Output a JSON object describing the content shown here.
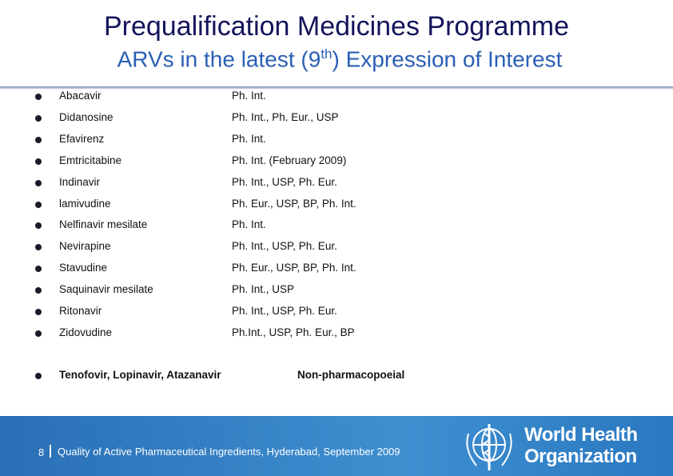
{
  "header": {
    "title": "Prequalification Medicines Programme",
    "subtitle": {
      "before": "ARVs in the latest (9",
      "sup": "th",
      "after": ") Expression of Interest"
    }
  },
  "table": {
    "rows": [
      [
        "Abacavir",
        "Ph. Int."
      ],
      [
        "Didanosine",
        "Ph. Int., Ph. Eur., USP"
      ],
      [
        "Efavirenz",
        "Ph. Int."
      ],
      [
        "Emtricitabine",
        "Ph. Int. (February 2009)"
      ],
      [
        "Indinavir",
        "Ph. Int., USP, Ph. Eur."
      ],
      [
        "lamivudine",
        "Ph. Eur., USP, BP, Ph. Int."
      ],
      [
        "Nelfinavir mesilate",
        "Ph. Int."
      ],
      [
        "Nevirapine",
        "Ph. Int., USP, Ph. Eur."
      ],
      [
        "Stavudine",
        "Ph. Eur., USP, BP, Ph. Int."
      ],
      [
        "Saquinavir mesilate",
        "Ph. Int., USP"
      ],
      [
        "Ritonavir",
        "Ph. Int., USP, Ph. Eur."
      ],
      [
        "Zidovudine",
        "Ph.Int., USP, Ph. Eur., BP"
      ]
    ],
    "last_row": [
      "Tenofovir, Lopinavir, Atazanavir",
      "Non-pharmacopoeial"
    ]
  },
  "footer": {
    "page": "8",
    "text": "Quality of Active Pharmaceutical Ingredients, Hyderabad, September 2009",
    "logo": {
      "line1": "World Health",
      "line2": "Organization"
    }
  }
}
